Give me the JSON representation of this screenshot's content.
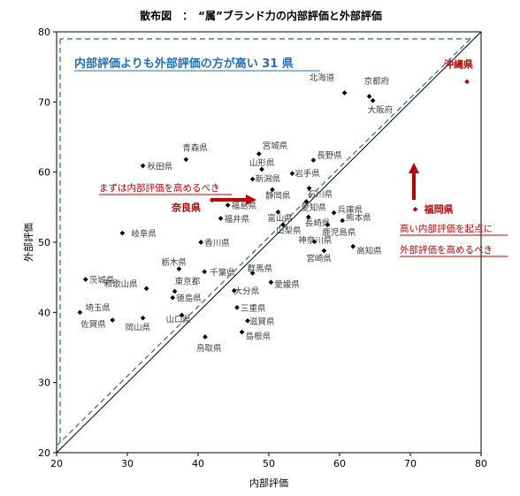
{
  "chart_data": {
    "type": "scatter",
    "title": "散布図　：　“属”ブランド力の内部評価と外部評価",
    "xlabel": "内部評価",
    "ylabel": "外部評価",
    "xlim": [
      20,
      80
    ],
    "ylim": [
      20,
      80
    ],
    "xticks": [
      "20",
      "30",
      "40",
      "50",
      "60",
      "70",
      "80"
    ],
    "yticks": [
      "20",
      "30",
      "40",
      "50",
      "60",
      "70",
      "80"
    ],
    "grid": false,
    "points": [
      {
        "label": "北海道",
        "x": 60.7,
        "y": 71.3
      },
      {
        "label": "京都府",
        "x": 64.2,
        "y": 70.8
      },
      {
        "label": "大阪府",
        "x": 64.7,
        "y": 70.2
      },
      {
        "label": "沖縄県",
        "x": 78.0,
        "y": 72.9,
        "highlight": true
      },
      {
        "label": "青森県",
        "x": 38.3,
        "y": 61.8
      },
      {
        "label": "宮城県",
        "x": 48.6,
        "y": 62.6
      },
      {
        "label": "長野県",
        "x": 56.3,
        "y": 61.7
      },
      {
        "label": "秋田県",
        "x": 32.2,
        "y": 60.9
      },
      {
        "label": "山形県",
        "x": 49.0,
        "y": 60.4
      },
      {
        "label": "岩手県",
        "x": 53.3,
        "y": 59.8
      },
      {
        "label": "新潟県",
        "x": 47.7,
        "y": 59.0
      },
      {
        "label": "静岡県",
        "x": 50.5,
        "y": 57.5
      },
      {
        "label": "石川県",
        "x": 55.7,
        "y": 57.7
      },
      {
        "label": "愛知県",
        "x": 55.3,
        "y": 55.8
      },
      {
        "label": "奈良県",
        "x": 42.0,
        "y": 56.0,
        "highlight": true
      },
      {
        "label": "福島県",
        "x": 44.2,
        "y": 55.3
      },
      {
        "label": "富山県",
        "x": 51.3,
        "y": 54.3
      },
      {
        "label": "兵庫県",
        "x": 59.2,
        "y": 54.2
      },
      {
        "label": "福岡県",
        "x": 70.7,
        "y": 54.7,
        "highlight": true
      },
      {
        "label": "福井県",
        "x": 43.2,
        "y": 53.4
      },
      {
        "label": "熊本県",
        "x": 60.4,
        "y": 53.1
      },
      {
        "label": "長崎県",
        "x": 55.6,
        "y": 53.6
      },
      {
        "label": "山梨県",
        "x": 52.0,
        "y": 52.5
      },
      {
        "label": "鹿児島県",
        "x": 58.3,
        "y": 52.5
      },
      {
        "label": "岐阜県",
        "x": 29.3,
        "y": 51.3
      },
      {
        "label": "香川県",
        "x": 40.4,
        "y": 50.0
      },
      {
        "label": "神奈川県",
        "x": 56.4,
        "y": 50.1
      },
      {
        "label": "高知県",
        "x": 61.9,
        "y": 49.4
      },
      {
        "label": "宮崎県",
        "x": 57.8,
        "y": 48.8
      },
      {
        "label": "栃木県",
        "x": 37.3,
        "y": 46.2
      },
      {
        "label": "千葉県",
        "x": 40.9,
        "y": 45.8
      },
      {
        "label": "群馬県",
        "x": 47.7,
        "y": 45.6
      },
      {
        "label": "茨城県",
        "x": 24.1,
        "y": 44.7
      },
      {
        "label": "愛媛県",
        "x": 50.3,
        "y": 44.3
      },
      {
        "label": "和歌山県",
        "x": 32.7,
        "y": 43.4
      },
      {
        "label": "東京都",
        "x": 36.7,
        "y": 43.0
      },
      {
        "label": "大分県",
        "x": 45.1,
        "y": 43.1
      },
      {
        "label": "徳島県",
        "x": 36.4,
        "y": 42.1
      },
      {
        "label": "三重県",
        "x": 45.5,
        "y": 40.7
      },
      {
        "label": "埼玉県",
        "x": 23.3,
        "y": 40.0
      },
      {
        "label": "山口県",
        "x": 37.7,
        "y": 39.6
      },
      {
        "label": "岡山県",
        "x": 32.2,
        "y": 39.2
      },
      {
        "label": "佐賀県",
        "x": 27.9,
        "y": 38.9
      },
      {
        "label": "滋賀県",
        "x": 47.0,
        "y": 38.8
      },
      {
        "label": "島根県",
        "x": 46.2,
        "y": 37.2
      },
      {
        "label": "鳥取県",
        "x": 41.0,
        "y": 36.5
      }
    ],
    "reference_lines": [
      {
        "style": "solid",
        "from": [
          20,
          20
        ],
        "to": [
          80,
          80
        ]
      },
      {
        "style": "dashed",
        "from": [
          20,
          21
        ],
        "to": [
          78.5,
          79.0
        ]
      }
    ],
    "annotations": [
      {
        "text": "内部評価よりも外部評価の方が高い 31 県",
        "style": "blue-underline"
      },
      {
        "text": "まずは内部評価を高めるべき",
        "style": "red-underline"
      },
      {
        "text": "高い内部評価を起点に",
        "style": "red-underline"
      },
      {
        "text": "外部評価を高めるべき",
        "style": "red-underline"
      }
    ],
    "colors": {
      "highlight": "#c00000",
      "dashed": "#2e75b6",
      "note_blue": "#1f6fc0",
      "point": "#000000"
    }
  }
}
